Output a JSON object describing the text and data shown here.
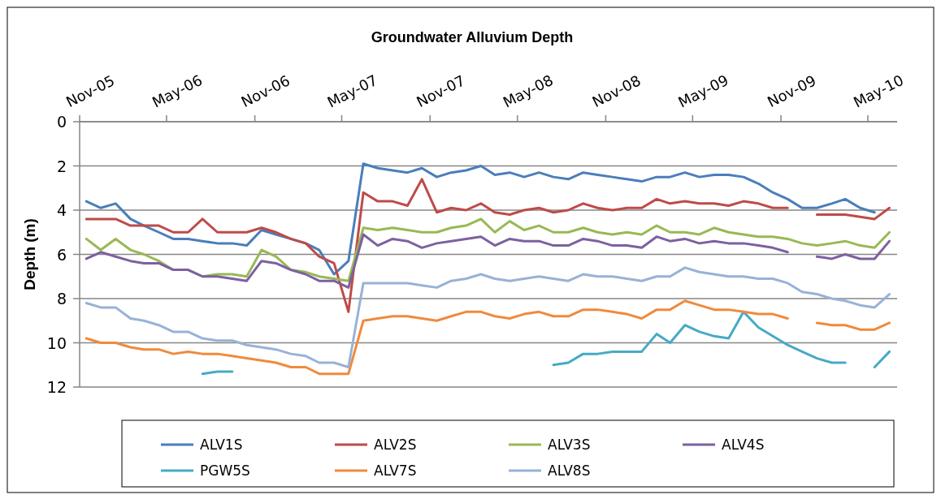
{
  "chart_data": {
    "type": "line",
    "title": "Groundwater Alluvium  Depth",
    "ylabel": "Depth (m)",
    "x": [
      "2005-11-15",
      "2005-12-15",
      "2006-01-15",
      "2006-02-15",
      "2006-03-15",
      "2006-04-15",
      "2006-05-15",
      "2006-06-15",
      "2006-07-15",
      "2006-08-15",
      "2006-09-15",
      "2006-10-15",
      "2006-11-15",
      "2006-12-15",
      "2007-01-15",
      "2007-02-15",
      "2007-03-15",
      "2007-04-15",
      "2007-05-15",
      "2007-06-15",
      "2007-07-15",
      "2007-08-15",
      "2007-09-15",
      "2007-10-15",
      "2007-11-15",
      "2007-12-15",
      "2008-01-15",
      "2008-02-15",
      "2008-03-15",
      "2008-04-15",
      "2008-05-15",
      "2008-06-15",
      "2008-07-15",
      "2008-08-15",
      "2008-09-15",
      "2008-10-15",
      "2008-11-15",
      "2008-12-15",
      "2009-01-15",
      "2009-02-15",
      "2009-03-15",
      "2009-04-15",
      "2009-05-15",
      "2009-06-15",
      "2009-07-15",
      "2009-08-15",
      "2009-09-15",
      "2009-10-15",
      "2009-11-15",
      "2009-12-15",
      "2010-01-15",
      "2010-02-15",
      "2010-03-15",
      "2010-04-15",
      "2010-05-15",
      "2010-06-15"
    ],
    "series": [
      {
        "name": "ALV1S",
        "color": "#4a7ebb",
        "values": [
          3.6,
          3.9,
          3.7,
          4.4,
          4.7,
          5.0,
          5.3,
          5.3,
          5.4,
          5.5,
          5.5,
          5.6,
          4.9,
          5.1,
          5.3,
          5.5,
          5.8,
          6.9,
          6.3,
          1.9,
          2.1,
          2.2,
          2.3,
          2.1,
          2.5,
          2.3,
          2.2,
          2.0,
          2.4,
          2.3,
          2.5,
          2.3,
          2.5,
          2.6,
          2.3,
          2.4,
          2.5,
          2.6,
          2.7,
          2.5,
          2.5,
          2.3,
          2.5,
          2.4,
          2.4,
          2.5,
          2.8,
          3.2,
          3.5,
          3.9,
          3.9,
          3.7,
          3.5,
          3.9,
          4.1,
          null
        ]
      },
      {
        "name": "ALV2S",
        "color": "#be4b48",
        "values": [
          4.4,
          4.4,
          4.4,
          4.7,
          4.7,
          4.7,
          5.0,
          5.0,
          4.4,
          5.0,
          5.0,
          5.0,
          4.8,
          5.0,
          5.3,
          5.5,
          6.1,
          6.4,
          8.6,
          3.2,
          3.6,
          3.6,
          3.8,
          2.6,
          4.1,
          3.9,
          4.0,
          3.7,
          4.1,
          4.2,
          4.0,
          3.9,
          4.1,
          4.0,
          3.7,
          3.9,
          4.0,
          3.9,
          3.9,
          3.5,
          3.7,
          3.6,
          3.7,
          3.7,
          3.8,
          3.6,
          3.7,
          3.9,
          3.9,
          null,
          4.2,
          4.2,
          4.2,
          4.3,
          4.4,
          3.9
        ]
      },
      {
        "name": "ALV3S",
        "color": "#98b954",
        "values": [
          5.3,
          5.8,
          5.3,
          5.8,
          6.0,
          6.3,
          6.7,
          6.7,
          7.0,
          6.9,
          6.9,
          7.0,
          5.8,
          6.1,
          6.7,
          6.8,
          7.0,
          7.1,
          7.2,
          4.8,
          4.9,
          4.8,
          4.9,
          5.0,
          5.0,
          4.8,
          4.7,
          4.4,
          5.0,
          4.5,
          4.9,
          4.7,
          5.0,
          5.0,
          4.8,
          5.0,
          5.1,
          5.0,
          5.1,
          4.7,
          5.0,
          5.0,
          5.1,
          4.8,
          5.0,
          5.1,
          5.2,
          5.2,
          5.3,
          5.5,
          5.6,
          5.5,
          5.4,
          5.6,
          5.7,
          5.0
        ]
      },
      {
        "name": "ALV4S",
        "color": "#7d60a0",
        "values": [
          6.2,
          5.9,
          6.1,
          6.3,
          6.4,
          6.4,
          6.7,
          6.7,
          7.0,
          7.0,
          7.1,
          7.2,
          6.3,
          6.4,
          6.7,
          6.9,
          7.2,
          7.2,
          7.5,
          5.1,
          5.6,
          5.3,
          5.4,
          5.7,
          5.5,
          5.4,
          5.3,
          5.2,
          5.6,
          5.3,
          5.4,
          5.4,
          5.6,
          5.6,
          5.3,
          5.4,
          5.6,
          5.6,
          5.7,
          5.2,
          5.4,
          5.3,
          5.5,
          5.4,
          5.5,
          5.5,
          5.6,
          5.7,
          5.9,
          null,
          6.1,
          6.2,
          6.0,
          6.2,
          6.2,
          5.4
        ]
      },
      {
        "name": "PGW5S",
        "color": "#46aac5",
        "values": [
          null,
          null,
          null,
          null,
          null,
          null,
          null,
          null,
          11.4,
          11.3,
          11.3,
          null,
          null,
          null,
          null,
          null,
          null,
          null,
          null,
          null,
          null,
          null,
          null,
          null,
          null,
          null,
          null,
          null,
          null,
          null,
          null,
          null,
          11.0,
          10.9,
          10.5,
          10.5,
          10.4,
          10.4,
          10.4,
          9.6,
          10.0,
          9.2,
          9.5,
          9.7,
          9.8,
          8.6,
          9.3,
          9.7,
          10.1,
          10.4,
          10.7,
          10.9,
          10.9,
          null,
          11.1,
          10.4
        ]
      },
      {
        "name": "ALV7S",
        "color": "#f08a3c",
        "values": [
          9.8,
          10.0,
          10.0,
          10.2,
          10.3,
          10.3,
          10.5,
          10.4,
          10.5,
          10.5,
          10.6,
          10.7,
          10.8,
          10.9,
          11.1,
          11.1,
          11.4,
          11.4,
          11.4,
          9.0,
          8.9,
          8.8,
          8.8,
          8.9,
          9.0,
          8.8,
          8.6,
          8.6,
          8.8,
          8.9,
          8.7,
          8.6,
          8.8,
          8.8,
          8.5,
          8.5,
          8.6,
          8.7,
          8.9,
          8.5,
          8.5,
          8.1,
          8.3,
          8.5,
          8.5,
          8.6,
          8.7,
          8.7,
          8.9,
          null,
          9.1,
          9.2,
          9.2,
          9.4,
          9.4,
          9.1
        ]
      },
      {
        "name": "ALV8S",
        "color": "#98b2d8",
        "values": [
          8.2,
          8.4,
          8.4,
          8.9,
          9.0,
          9.2,
          9.5,
          9.5,
          9.8,
          9.9,
          9.9,
          10.1,
          10.2,
          10.3,
          10.5,
          10.6,
          10.9,
          10.9,
          11.1,
          7.3,
          7.3,
          7.3,
          7.3,
          7.4,
          7.5,
          7.2,
          7.1,
          6.9,
          7.1,
          7.2,
          7.1,
          7.0,
          7.1,
          7.2,
          6.9,
          7.0,
          7.0,
          7.1,
          7.2,
          7.0,
          7.0,
          6.6,
          6.8,
          6.9,
          7.0,
          7.0,
          7.1,
          7.1,
          7.3,
          7.7,
          7.8,
          8.0,
          8.1,
          8.3,
          8.4,
          7.8
        ]
      }
    ],
    "xlim": [
      "2005-11-01",
      "2010-07-01"
    ],
    "xticks": [
      {
        "value": "2005-11-01",
        "label": "Nov-05"
      },
      {
        "value": "2006-05-01",
        "label": "May-06"
      },
      {
        "value": "2006-11-01",
        "label": "Nov-06"
      },
      {
        "value": "2007-05-01",
        "label": "May-07"
      },
      {
        "value": "2007-11-01",
        "label": "Nov-07"
      },
      {
        "value": "2008-05-01",
        "label": "May-08"
      },
      {
        "value": "2008-11-01",
        "label": "Nov-08"
      },
      {
        "value": "2009-05-01",
        "label": "May-09"
      },
      {
        "value": "2009-11-01",
        "label": "Nov-09"
      },
      {
        "value": "2010-05-01",
        "label": "May-10"
      }
    ],
    "ylim": [
      12,
      0
    ],
    "yticks": [
      0,
      2,
      4,
      6,
      8,
      10,
      12
    ],
    "grid": "y",
    "legend": "bottom",
    "marker": "none",
    "line_style": "solid"
  }
}
